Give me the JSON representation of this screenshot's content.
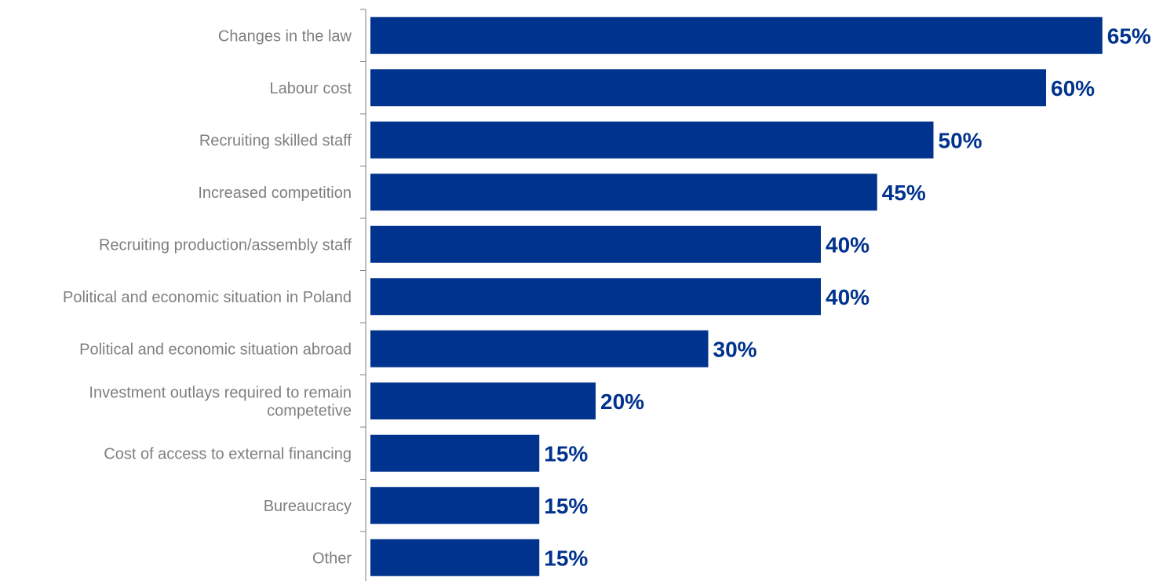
{
  "chart_data": {
    "type": "bar",
    "orientation": "horizontal",
    "categories": [
      [
        "Changes in the law"
      ],
      [
        "Labour cost"
      ],
      [
        "Recruiting skilled staff"
      ],
      [
        "Increased competition"
      ],
      [
        "Recruiting production/assembly staff"
      ],
      [
        "Political and economic situation in Poland"
      ],
      [
        "Political and economic situation abroad"
      ],
      [
        "Investment outlays required to remain",
        "competetive"
      ],
      [
        "Cost of access to external financing"
      ],
      [
        "Bureaucracy"
      ],
      [
        "Other"
      ]
    ],
    "values": [
      65,
      60,
      50,
      45,
      40,
      40,
      30,
      20,
      15,
      15,
      15
    ],
    "value_labels": [
      "65%",
      "60%",
      "50%",
      "45%",
      "40%",
      "40%",
      "30%",
      "20%",
      "15%",
      "15%",
      "15%"
    ],
    "xlim": [
      0,
      65
    ],
    "grid": false,
    "legend": "none",
    "colors": {
      "bar": "#00338d",
      "value_label": "#00338d",
      "category_label": "#7f7f7f",
      "axis": "#7f7f7f"
    }
  }
}
